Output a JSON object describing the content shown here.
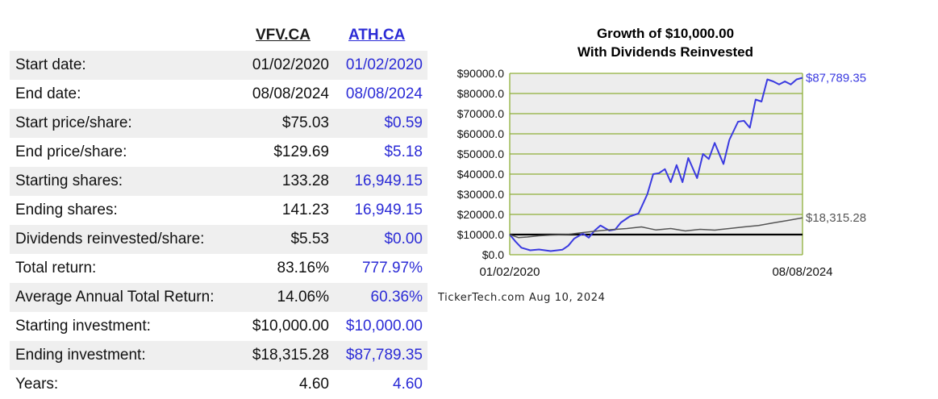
{
  "table": {
    "tickers": [
      "VFV.CA",
      "ATH.CA"
    ],
    "rows": [
      {
        "label": "Start date:",
        "v1": "01/02/2020",
        "v2": "01/02/2020"
      },
      {
        "label": "End date:",
        "v1": "08/08/2024",
        "v2": "08/08/2024"
      },
      {
        "label": "Start price/share:",
        "v1": "$75.03",
        "v2": "$0.59"
      },
      {
        "label": "End price/share:",
        "v1": "$129.69",
        "v2": "$5.18"
      },
      {
        "label": "Starting shares:",
        "v1": "133.28",
        "v2": "16,949.15"
      },
      {
        "label": "Ending shares:",
        "v1": "141.23",
        "v2": "16,949.15"
      },
      {
        "label": "Dividends reinvested/share:",
        "v1": "$5.53",
        "v2": "$0.00"
      },
      {
        "label": "Total return:",
        "v1": "83.16%",
        "v2": "777.97%"
      },
      {
        "label": "Average Annual Total Return:",
        "v1": "14.06%",
        "v2": "60.36%"
      },
      {
        "label": "Starting investment:",
        "v1": "$10,000.00",
        "v2": "$10,000.00"
      },
      {
        "label": "Ending investment:",
        "v1": "$18,315.28",
        "v2": "$87,789.35"
      },
      {
        "label": "Years:",
        "v1": "4.60",
        "v2": "4.60"
      }
    ]
  },
  "chart_data": {
    "type": "line",
    "title": "Growth of $10,000.00",
    "subtitle": "With Dividends Reinvested",
    "ylim": [
      0,
      90000
    ],
    "y_ticks": [
      0,
      10000,
      20000,
      30000,
      40000,
      50000,
      60000,
      70000,
      80000,
      90000
    ],
    "y_tick_labels": [
      "$0.0",
      "$10000.0",
      "$20000.0",
      "$30000.0",
      "$40000.0",
      "$50000.0",
      "$60000.0",
      "$70000.0",
      "$80000.0",
      "$90000.0"
    ],
    "x_tick_labels": [
      "01/02/2020",
      "08/08/2024"
    ],
    "grid": true,
    "baseline_value": 10000,
    "series": [
      {
        "color": "#3a3ae0",
        "end_label": "$87,789.35",
        "points": [
          [
            0,
            10000
          ],
          [
            0.02,
            6500
          ],
          [
            0.04,
            3500
          ],
          [
            0.07,
            2200
          ],
          [
            0.1,
            2600
          ],
          [
            0.14,
            1800
          ],
          [
            0.18,
            2500
          ],
          [
            0.2,
            4500
          ],
          [
            0.22,
            8000
          ],
          [
            0.25,
            10500
          ],
          [
            0.27,
            8500
          ],
          [
            0.29,
            12000
          ],
          [
            0.31,
            14500
          ],
          [
            0.34,
            12000
          ],
          [
            0.36,
            12500
          ],
          [
            0.38,
            16000
          ],
          [
            0.41,
            19000
          ],
          [
            0.44,
            20500
          ],
          [
            0.47,
            30000
          ],
          [
            0.49,
            40000
          ],
          [
            0.51,
            40500
          ],
          [
            0.53,
            42500
          ],
          [
            0.55,
            36000
          ],
          [
            0.57,
            44500
          ],
          [
            0.59,
            36000
          ],
          [
            0.61,
            48000
          ],
          [
            0.64,
            38000
          ],
          [
            0.66,
            50000
          ],
          [
            0.68,
            47500
          ],
          [
            0.7,
            55500
          ],
          [
            0.73,
            45000
          ],
          [
            0.75,
            57000
          ],
          [
            0.78,
            66000
          ],
          [
            0.8,
            66500
          ],
          [
            0.82,
            63000
          ],
          [
            0.84,
            77000
          ],
          [
            0.86,
            76000
          ],
          [
            0.88,
            87000
          ],
          [
            0.9,
            86000
          ],
          [
            0.92,
            84500
          ],
          [
            0.94,
            86000
          ],
          [
            0.96,
            84500
          ],
          [
            0.98,
            87000
          ],
          [
            1,
            87789.35
          ]
        ]
      },
      {
        "color": "#555555",
        "end_label": "$18,315.28",
        "points": [
          [
            0,
            10000
          ],
          [
            0.03,
            8500
          ],
          [
            0.06,
            8800
          ],
          [
            0.1,
            9400
          ],
          [
            0.15,
            9800
          ],
          [
            0.2,
            10100
          ],
          [
            0.25,
            11000
          ],
          [
            0.3,
            11800
          ],
          [
            0.35,
            12500
          ],
          [
            0.4,
            13000
          ],
          [
            0.45,
            13800
          ],
          [
            0.5,
            12300
          ],
          [
            0.55,
            13000
          ],
          [
            0.6,
            11800
          ],
          [
            0.65,
            12600
          ],
          [
            0.7,
            12200
          ],
          [
            0.75,
            13000
          ],
          [
            0.8,
            13800
          ],
          [
            0.85,
            14500
          ],
          [
            0.9,
            15800
          ],
          [
            0.95,
            17000
          ],
          [
            1,
            18315.28
          ]
        ]
      }
    ]
  },
  "footer": "TickerTech.com  Aug 10, 2024"
}
